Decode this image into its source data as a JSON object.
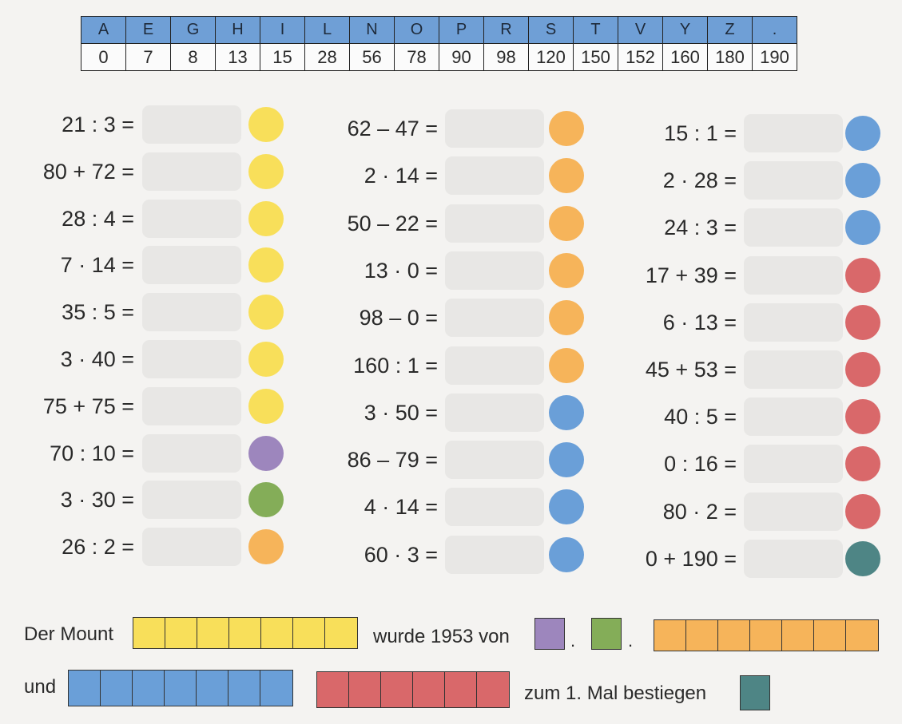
{
  "code_table": {
    "letters": [
      "A",
      "E",
      "G",
      "H",
      "I",
      "L",
      "N",
      "O",
      "P",
      "R",
      "S",
      "T",
      "V",
      "Y",
      "Z",
      "."
    ],
    "numbers": [
      "0",
      "7",
      "8",
      "13",
      "15",
      "28",
      "56",
      "78",
      "90",
      "98",
      "120",
      "150",
      "152",
      "160",
      "180",
      "190"
    ]
  },
  "colors": {
    "yellow": "#f8df5a",
    "purple": "#9d86bd",
    "green": "#84ad58",
    "orange": "#f6b45a",
    "blue": "#6a9fd8",
    "red": "#d9686a",
    "teal": "#4e8585"
  },
  "columns": [
    [
      {
        "expr": "21 : 3 =",
        "color": "yellow"
      },
      {
        "expr": "80 + 72 =",
        "color": "yellow"
      },
      {
        "expr": "28 : 4 =",
        "color": "yellow"
      },
      {
        "expr": "7 · 14 =",
        "color": "yellow"
      },
      {
        "expr": "35 : 5 =",
        "color": "yellow"
      },
      {
        "expr": "3 · 40 =",
        "color": "yellow"
      },
      {
        "expr": "75 + 75 =",
        "color": "yellow"
      },
      {
        "expr": "70 : 10 =",
        "color": "purple"
      },
      {
        "expr": "3 · 30 =",
        "color": "green"
      },
      {
        "expr": "26 : 2 =",
        "color": "orange"
      }
    ],
    [
      {
        "expr": "62 – 47 =",
        "color": "orange"
      },
      {
        "expr": "2 · 14 =",
        "color": "orange"
      },
      {
        "expr": "50 – 22 =",
        "color": "orange"
      },
      {
        "expr": "13 · 0 =",
        "color": "orange"
      },
      {
        "expr": "98 – 0 =",
        "color": "orange"
      },
      {
        "expr": "160 : 1 =",
        "color": "orange"
      },
      {
        "expr": "3 · 50 =",
        "color": "blue"
      },
      {
        "expr": "86 – 79 =",
        "color": "blue"
      },
      {
        "expr": "4 · 14 =",
        "color": "blue"
      },
      {
        "expr": "60 · 3 =",
        "color": "blue"
      }
    ],
    [
      {
        "expr": "15 : 1 =",
        "color": "blue"
      },
      {
        "expr": "2 · 28 =",
        "color": "blue"
      },
      {
        "expr": "24 : 3 =",
        "color": "blue"
      },
      {
        "expr": "17 + 39 =",
        "color": "red"
      },
      {
        "expr": "6 · 13 =",
        "color": "red"
      },
      {
        "expr": "45 + 53 =",
        "color": "red"
      },
      {
        "expr": "40 : 5 =",
        "color": "red"
      },
      {
        "expr": "0 : 16 =",
        "color": "red"
      },
      {
        "expr": "80 · 2 =",
        "color": "red"
      },
      {
        "expr": "0 + 190 =",
        "color": "teal"
      }
    ]
  ],
  "sentence": {
    "part1": "Der Mount",
    "part2": "wurde 1953 von",
    "dot": ".",
    "part3": "und",
    "part4": "zum 1. Mal bestiegen"
  }
}
